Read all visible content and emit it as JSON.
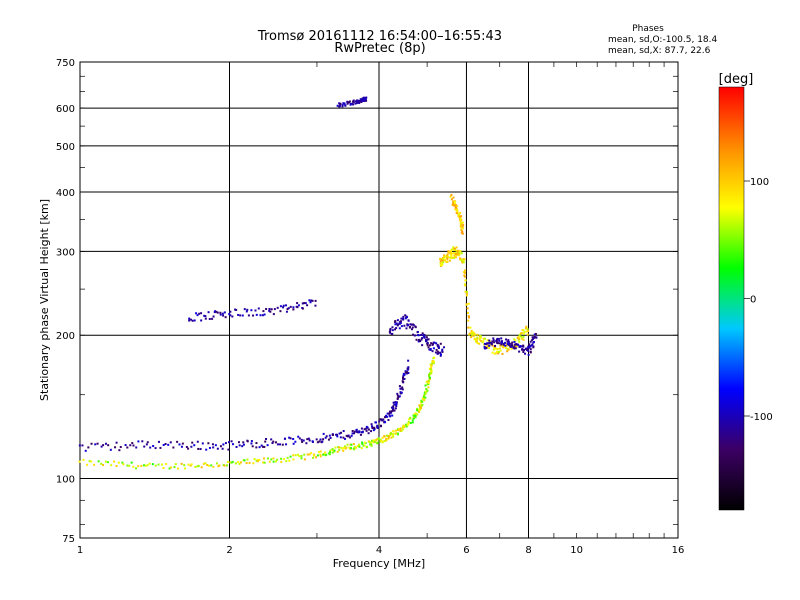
{
  "chart_data": {
    "type": "scatter",
    "title": "Tromsø 20161112 16:54:00–16:55:43",
    "subtitle": "RwPretec (8p)",
    "xlabel": "Frequency [MHz]",
    "ylabel": "Stationary phase Virtual Height [km]",
    "x_scale": "log",
    "y_scale": "log",
    "xlim": [
      1,
      16
    ],
    "ylim": [
      75,
      750
    ],
    "x_ticks": [
      1,
      2,
      4,
      6,
      8,
      10,
      16
    ],
    "y_ticks": [
      75,
      100,
      200,
      300,
      400,
      500,
      600,
      750
    ],
    "x_grid": [
      2,
      4,
      6,
      8
    ],
    "y_grid": [
      100,
      200,
      300,
      400,
      500,
      600
    ],
    "grid": true,
    "colorbar": {
      "label": "[deg]",
      "ticks": [
        100,
        0,
        -100
      ],
      "range": [
        -180,
        180
      ],
      "stops": [
        "#000000",
        "#3c0064",
        "#0000ff",
        "#00c8ff",
        "#00ff00",
        "#ffff00",
        "#ff8c00",
        "#ff0000"
      ]
    },
    "stats": {
      "heading": "Phases",
      "line1": "mean, sd,O:-100.5, 18.4",
      "line2": "mean, sd,X:  87.7, 22.6"
    },
    "traces": [
      {
        "f": [
          1.0,
          1.4,
          1.9,
          2.4,
          3.0,
          3.4,
          3.8,
          4.1,
          4.4,
          4.7,
          4.9,
          5.05,
          5.15
        ],
        "h": [
          108,
          106,
          107,
          109,
          112,
          116,
          118,
          121,
          126,
          134,
          145,
          162,
          180
        ],
        "spread": 0.014,
        "phase": 70,
        "jitter": 40
      },
      {
        "f": [
          1.0,
          1.4,
          1.9,
          2.4,
          3.0,
          3.5,
          3.9,
          4.2,
          4.4,
          4.6
        ],
        "h": [
          116,
          118,
          117,
          119,
          121,
          124,
          128,
          135,
          150,
          175
        ],
        "spread": 0.02,
        "phase": -110,
        "jitter": 25
      },
      {
        "f": [
          4.2,
          4.5,
          4.8,
          5.1,
          5.4
        ],
        "h": [
          205,
          215,
          200,
          190,
          185
        ],
        "spread": 0.03,
        "phase": -110,
        "jitter": 25
      },
      {
        "f": [
          5.3,
          5.5,
          5.7,
          5.9,
          6.1,
          6.4,
          6.9,
          7.5,
          8.0
        ],
        "h": [
          285,
          292,
          300,
          290,
          200,
          195,
          185,
          192,
          205
        ],
        "spread": 0.025,
        "phase": 90,
        "jitter": 30
      },
      {
        "f": [
          6.5,
          7.0,
          7.5,
          8.0,
          8.3
        ],
        "h": [
          190,
          195,
          190,
          185,
          200
        ],
        "spread": 0.02,
        "phase": -110,
        "jitter": 20
      },
      {
        "f": [
          5.6,
          5.8,
          5.9
        ],
        "h": [
          390,
          360,
          330
        ],
        "spread": 0.02,
        "phase": 100,
        "jitter": 30
      },
      {
        "f": [
          1.65,
          2.0,
          2.5,
          3.0
        ],
        "h": [
          218,
          222,
          225,
          235
        ],
        "spread": 0.02,
        "phase": -110,
        "jitter": 20
      },
      {
        "f": [
          3.3,
          3.6,
          3.8
        ],
        "h": [
          608,
          618,
          628
        ],
        "spread": 0.01,
        "phase": -110,
        "jitter": 20
      }
    ]
  }
}
